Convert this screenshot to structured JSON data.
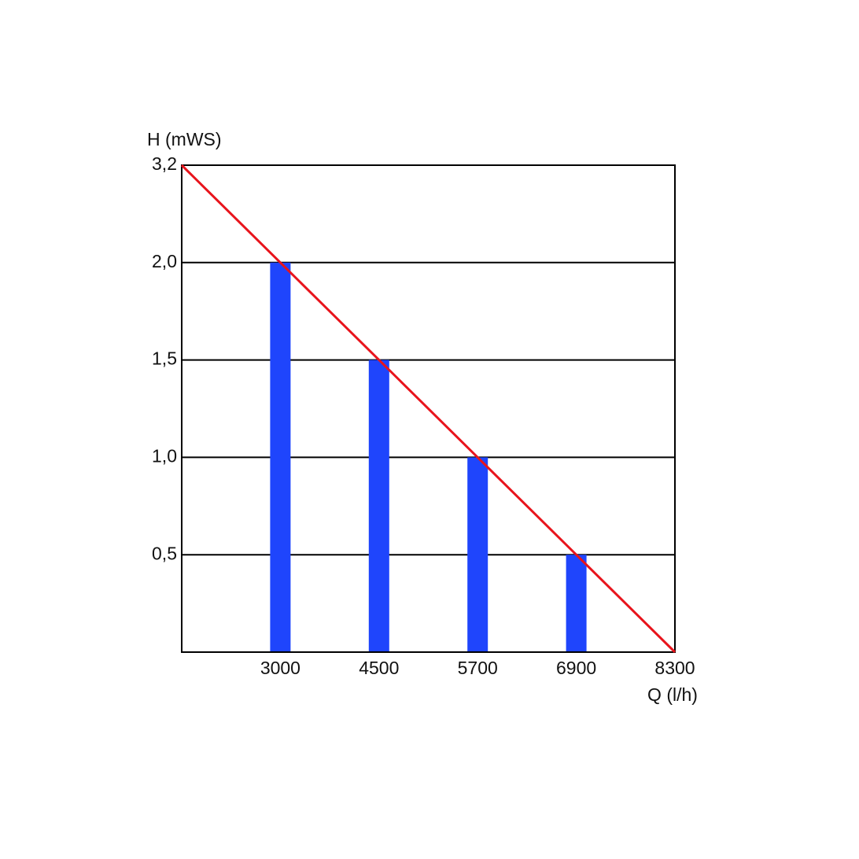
{
  "chart_data": {
    "type": "bar",
    "x_label": "Q (l/h)",
    "y_label": "H (mWS)",
    "categories": [
      null,
      "3000",
      "4500",
      "5700",
      "6900",
      "8300"
    ],
    "series": [
      {
        "type": "bar",
        "color": "#1f45fc",
        "values": [
          null,
          2.0,
          1.5,
          1.0,
          0.5,
          null
        ]
      },
      {
        "type": "line",
        "color": "#e8141c",
        "values": [
          3.2,
          2.0,
          1.5,
          1.0,
          0.5,
          0
        ]
      }
    ],
    "ylim": [
      0,
      3.2
    ],
    "yticks": [
      {
        "value": 0.5,
        "label": "0,5"
      },
      {
        "value": 1.0,
        "label": "1,0"
      },
      {
        "value": 1.5,
        "label": "1,5"
      },
      {
        "value": 2.0,
        "label": "2,0"
      },
      {
        "value": 3.2,
        "label": "3,2"
      }
    ],
    "grid": true
  }
}
